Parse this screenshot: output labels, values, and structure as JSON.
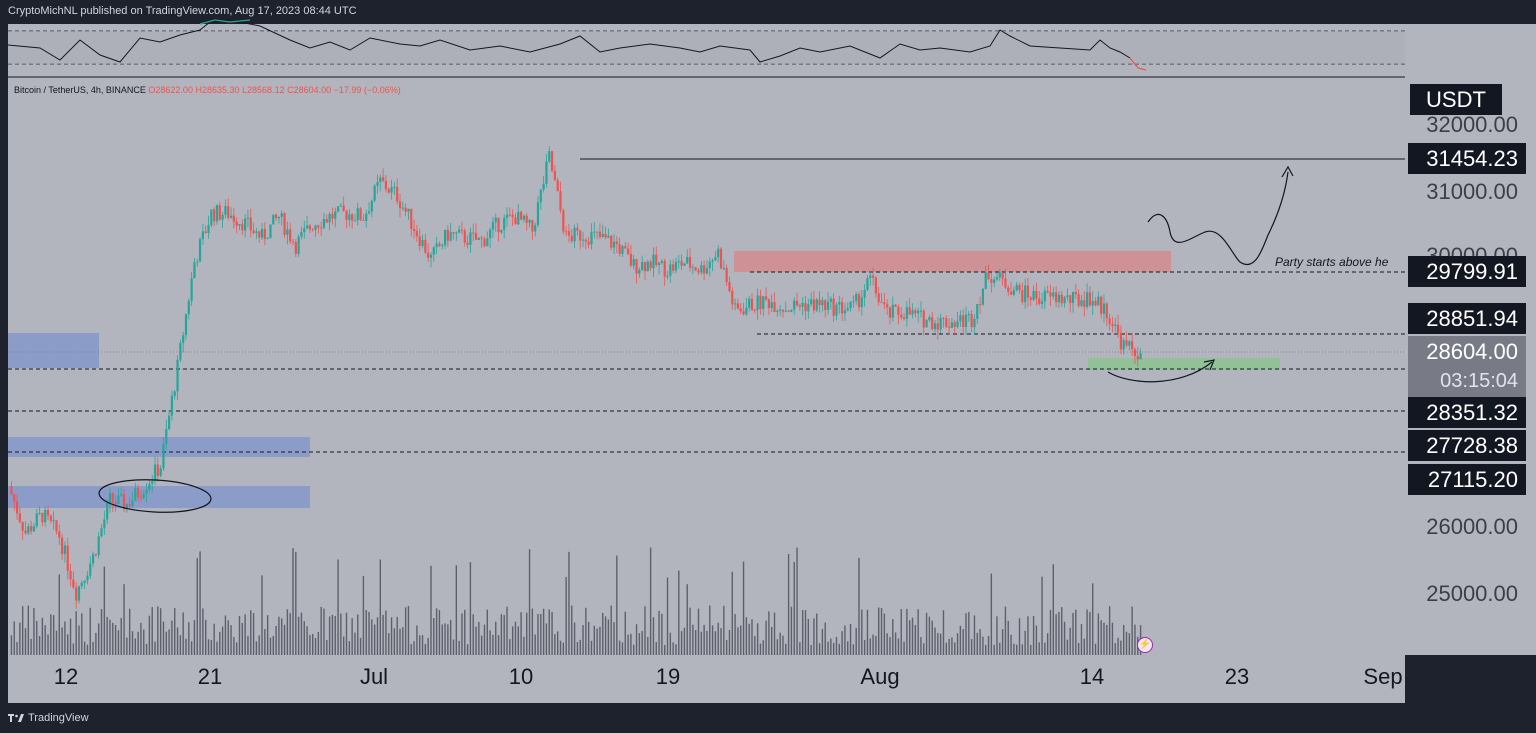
{
  "publish_line": "CryptoMichNL published on TradingView.com, Aug 17, 2023 08:44 UTC",
  "brand": "TradingView",
  "legend": {
    "symbol": "Bitcoin / TetherUS, 4h, BINANCE",
    "open": "O28622.00",
    "high": "H28635.30",
    "low": "L28568.12",
    "close": "C28604.00",
    "change": "−17.99 (−0.06%)"
  },
  "currency": "USDT",
  "annotation": "Party starts above he",
  "countdown": "03:15:04",
  "colors": {
    "background": "#b2b5be",
    "frame": "#1e222d",
    "up_candle": "#26a69a",
    "down_candle": "#ef5350",
    "resistance_zone": "#e57373",
    "support_zone": "#81c784",
    "demand_zone": "#5c7fd6"
  },
  "chart_data": {
    "type": "candlestick",
    "symbol": "Bitcoin / TetherUS",
    "interval": "4h",
    "exchange": "BINANCE",
    "ylim": [
      24300,
      32400
    ],
    "y_ticks": [
      "32000.00",
      "31000.00",
      "30000.00",
      "26000.00",
      "25000.00"
    ],
    "x_ticks": [
      "12",
      "21",
      "Jul",
      "10",
      "19",
      "Aug",
      "14",
      "23",
      "Sep"
    ],
    "price_labels": [
      {
        "text": "31454.23",
        "style": "dark"
      },
      {
        "text": "29799.91",
        "style": "dark"
      },
      {
        "text": "28851.94",
        "style": "dark"
      },
      {
        "text": "28604.00",
        "style": "current"
      },
      {
        "text": "28351.32",
        "style": "dark"
      },
      {
        "text": "27728.38",
        "style": "dark"
      },
      {
        "text": "27115.20",
        "style": "dark"
      }
    ],
    "horizontal_levels": [
      31454.23,
      29799.91,
      28851.94,
      28351.32,
      27728.38,
      27115.2
    ],
    "path_points": [
      [
        "Jun 11",
        26700
      ],
      [
        "Jun 12",
        26050
      ],
      [
        "Jun 13",
        26300
      ],
      [
        "Jun 14",
        26000
      ],
      [
        "Jun 15",
        25200
      ],
      [
        "Jun 16",
        25700
      ],
      [
        "Jun 17",
        26500
      ],
      [
        "Jun 18",
        26450
      ],
      [
        "Jun 19",
        26700
      ],
      [
        "Jun 20",
        27000
      ],
      [
        "Jun 21",
        28400
      ],
      [
        "Jun 22",
        29900
      ],
      [
        "Jun 23",
        30600
      ],
      [
        "Jun 24",
        30600
      ],
      [
        "Jun 25",
        30450
      ],
      [
        "Jun 26",
        30250
      ],
      [
        "Jun 27",
        30550
      ],
      [
        "Jun 28",
        30150
      ],
      [
        "Jun 29",
        30450
      ],
      [
        "Jun 30",
        30550
      ],
      [
        "Jul 01",
        30600
      ],
      [
        "Jul 02",
        30550
      ],
      [
        "Jul 03",
        31050
      ],
      [
        "Jul 04",
        30850
      ],
      [
        "Jul 05",
        30400
      ],
      [
        "Jul 06",
        29950
      ],
      [
        "Jul 07",
        30300
      ],
      [
        "Jul 08",
        30250
      ],
      [
        "Jul 09",
        30200
      ],
      [
        "Jul 10",
        30450
      ],
      [
        "Jul 11",
        30550
      ],
      [
        "Jul 12",
        30350
      ],
      [
        "Jul 13",
        31400
      ],
      [
        "Jul 14",
        30250
      ],
      [
        "Jul 15",
        30300
      ],
      [
        "Jul 16",
        30250
      ],
      [
        "Jul 17",
        30150
      ],
      [
        "Jul 18",
        29850
      ],
      [
        "Jul 19",
        29900
      ],
      [
        "Jul 20",
        29800
      ],
      [
        "Jul 21",
        29900
      ],
      [
        "Jul 22",
        29800
      ],
      [
        "Jul 23",
        30050
      ],
      [
        "Jul 24",
        29200
      ],
      [
        "Jul 25",
        29300
      ],
      [
        "Jul 26",
        29350
      ],
      [
        "Jul 27",
        29250
      ],
      [
        "Jul 28",
        29300
      ],
      [
        "Jul 29",
        29300
      ],
      [
        "Jul 30",
        29250
      ],
      [
        "Jul 31",
        29250
      ],
      [
        "Aug 01",
        29650
      ],
      [
        "Aug 02",
        29150
      ],
      [
        "Aug 03",
        29200
      ],
      [
        "Aug 04",
        29100
      ],
      [
        "Aug 05",
        29050
      ],
      [
        "Aug 06",
        29050
      ],
      [
        "Aug 07",
        29100
      ],
      [
        "Aug 08",
        29750
      ],
      [
        "Aug 09",
        29600
      ],
      [
        "Aug 10",
        29450
      ],
      [
        "Aug 11",
        29400
      ],
      [
        "Aug 12",
        29400
      ],
      [
        "Aug 13",
        29350
      ],
      [
        "Aug 14",
        29400
      ],
      [
        "Aug 15",
        29200
      ],
      [
        "Aug 16",
        28700
      ],
      [
        "Aug 17",
        28604
      ]
    ],
    "zones": [
      {
        "name": "resistance",
        "from": 29800,
        "to": 30080
      },
      {
        "name": "support",
        "from": 28590,
        "to": 28700
      },
      {
        "name": "demand-1",
        "from": 28610,
        "to": 29000
      },
      {
        "name": "demand-2",
        "from": 27720,
        "to": 27980
      },
      {
        "name": "demand-3",
        "from": 26960,
        "to": 27260
      }
    ]
  }
}
